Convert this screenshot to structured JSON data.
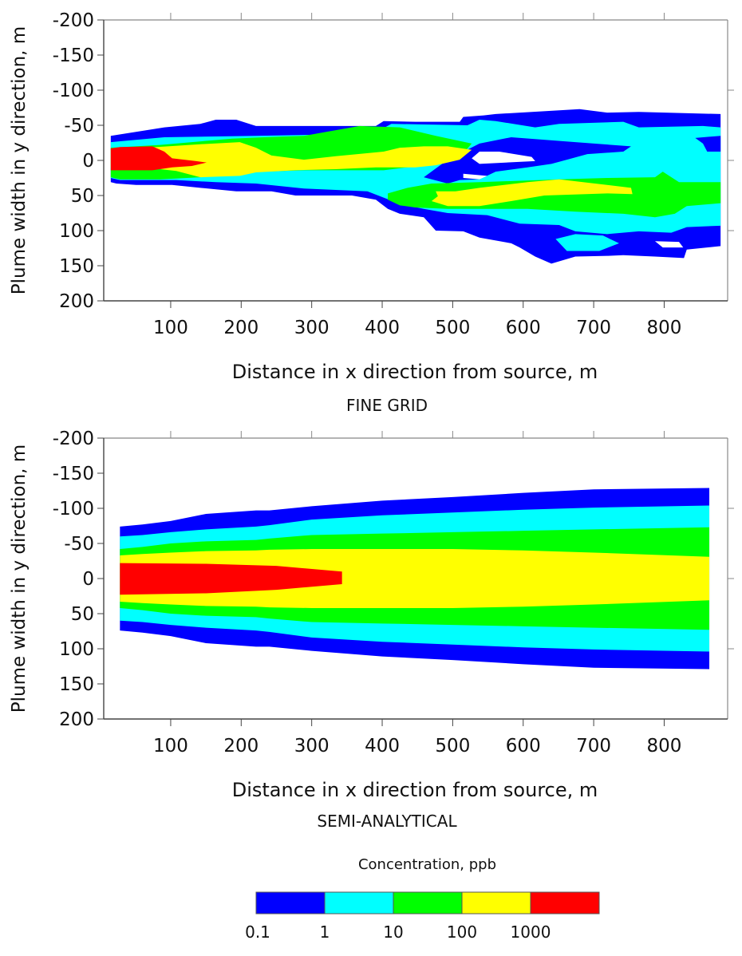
{
  "chart_data": [
    {
      "type": "contour",
      "subtitle": "FINE GRID",
      "xlabel": "Distance in x direction from source, m",
      "ylabel": "Plume width in y direction, m",
      "xlim": [
        5,
        890
      ],
      "ylim": [
        -200,
        200
      ],
      "y_inverted": true,
      "xticks": [
        100,
        200,
        300,
        400,
        500,
        600,
        700,
        800
      ],
      "yticks": [
        -200,
        -150,
        -100,
        -50,
        0,
        50,
        100,
        150,
        200
      ],
      "grid": false,
      "regions": [
        {
          "level": "0.1-1",
          "color": "#0000ff",
          "points": [
            [
              15,
              -35
            ],
            [
              91,
              -47
            ],
            [
              142,
              -52
            ],
            [
              164,
              -58
            ],
            [
              193,
              -58
            ],
            [
              221,
              -49
            ],
            [
              391,
              -49
            ],
            [
              402,
              -56
            ],
            [
              447,
              -55
            ],
            [
              510,
              -55
            ],
            [
              515,
              -62
            ],
            [
              544,
              -64
            ],
            [
              561,
              -66
            ],
            [
              680,
              -73
            ],
            [
              719,
              -68
            ],
            [
              764,
              -69
            ],
            [
              880,
              -66
            ],
            [
              880,
              122
            ],
            [
              861,
              124
            ],
            [
              832,
              127
            ],
            [
              828,
              139
            ],
            [
              787,
              137
            ],
            [
              742,
              135
            ],
            [
              719,
              136
            ],
            [
              674,
              137
            ],
            [
              640,
              147
            ],
            [
              617,
              137
            ],
            [
              595,
              124
            ],
            [
              583,
              118
            ],
            [
              538,
              110
            ],
            [
              515,
              101
            ],
            [
              476,
              100
            ],
            [
              459,
              81
            ],
            [
              425,
              76
            ],
            [
              408,
              69
            ],
            [
              391,
              56
            ],
            [
              357,
              50
            ],
            [
              277,
              50
            ],
            [
              243,
              44
            ],
            [
              193,
              44
            ],
            [
              142,
              39
            ],
            [
              102,
              35
            ],
            [
              51,
              35
            ],
            [
              23,
              33
            ],
            [
              15,
              31
            ]
          ]
        },
        {
          "level": "1-10",
          "color": "#00ffff",
          "points": [
            [
              15,
              -26
            ],
            [
              91,
              -33
            ],
            [
              221,
              -35
            ],
            [
              334,
              -37
            ],
            [
              391,
              -40
            ],
            [
              413,
              -52
            ],
            [
              521,
              -50
            ],
            [
              538,
              -58
            ],
            [
              561,
              -56
            ],
            [
              617,
              -47
            ],
            [
              651,
              -52
            ],
            [
              742,
              -55
            ],
            [
              764,
              -47
            ],
            [
              855,
              -49
            ],
            [
              880,
              -47
            ],
            [
              880,
              93
            ],
            [
              832,
              95
            ],
            [
              810,
              103
            ],
            [
              764,
              101
            ],
            [
              719,
              105
            ],
            [
              674,
              101
            ],
            [
              651,
              92
            ],
            [
              595,
              90
            ],
            [
              549,
              78
            ],
            [
              493,
              75
            ],
            [
              459,
              69
            ],
            [
              425,
              62
            ],
            [
              402,
              53
            ],
            [
              379,
              44
            ],
            [
              289,
              40
            ],
            [
              221,
              33
            ],
            [
              164,
              31
            ],
            [
              108,
              28
            ],
            [
              28,
              28
            ],
            [
              15,
              25
            ]
          ]
        },
        {
          "level": "0.1-1",
          "color": "#0000ff",
          "points": [
            [
              459,
              24
            ],
            [
              493,
              -1
            ],
            [
              538,
              -24
            ],
            [
              583,
              -33
            ],
            [
              674,
              -26
            ],
            [
              753,
              -20
            ],
            [
              742,
              -12.5
            ],
            [
              691,
              -9
            ],
            [
              662,
              -1
            ],
            [
              640,
              5
            ],
            [
              606,
              10
            ],
            [
              561,
              16
            ],
            [
              538,
              27
            ],
            [
              510,
              28
            ],
            [
              493,
              33
            ]
          ]
        },
        {
          "level": "0.1-1",
          "color": "#0000ff",
          "points": [
            [
              306,
              -22
            ],
            [
              357,
              -24
            ],
            [
              334,
              -12.5
            ],
            [
              306,
              -12.5
            ]
          ]
        },
        {
          "level": "0.1-1",
          "color": "#0000ff",
          "points": [
            [
              844,
              -32
            ],
            [
              880,
              -35
            ],
            [
              880,
              -12.5
            ],
            [
              861,
              -12.5
            ],
            [
              855,
              -24
            ]
          ]
        },
        {
          "level": "1-10",
          "color": "#00ffff",
          "points": [
            [
              646,
              112
            ],
            [
              674,
              105
            ],
            [
              713,
              107
            ],
            [
              736,
              118
            ],
            [
              708,
              129
            ],
            [
              662,
              129
            ]
          ]
        },
        {
          "level": "10-100",
          "color": "#00ff00",
          "points": [
            [
              15,
              -18
            ],
            [
              85,
              -22
            ],
            [
              130,
              -26
            ],
            [
              187,
              -31
            ],
            [
              232,
              -33
            ],
            [
              289,
              -35
            ],
            [
              323,
              -41
            ],
            [
              368,
              -49
            ],
            [
              425,
              -47
            ],
            [
              476,
              -35
            ],
            [
              527,
              -24
            ],
            [
              515,
              -10
            ],
            [
              476,
              5
            ],
            [
              402,
              14
            ],
            [
              334,
              14
            ],
            [
              289,
              14
            ],
            [
              232,
              16
            ],
            [
              187,
              19
            ],
            [
              142,
              24
            ],
            [
              85,
              27
            ],
            [
              28,
              27
            ],
            [
              15,
              24
            ]
          ]
        },
        {
          "level": "10-100",
          "color": "#00ff00",
          "points": [
            [
              408,
              47
            ],
            [
              436,
              39
            ],
            [
              470,
              33
            ],
            [
              538,
              31
            ],
            [
              651,
              27
            ],
            [
              719,
              25
            ],
            [
              787,
              24
            ],
            [
              798,
              16
            ],
            [
              821,
              31
            ],
            [
              880,
              31
            ],
            [
              880,
              61
            ],
            [
              832,
              65
            ],
            [
              815,
              76
            ],
            [
              787,
              81
            ],
            [
              742,
              76
            ],
            [
              674,
              73
            ],
            [
              606,
              69
            ],
            [
              561,
              69
            ],
            [
              493,
              69
            ],
            [
              447,
              67
            ],
            [
              425,
              64
            ],
            [
              408,
              56
            ]
          ]
        },
        {
          "level": "100-1000",
          "color": "#ffff00",
          "points": [
            [
              15,
              -15
            ],
            [
              96,
              -20
            ],
            [
              142,
              -23
            ],
            [
              198,
              -26
            ],
            [
              221,
              -18
            ],
            [
              243,
              -7
            ],
            [
              289,
              -1
            ],
            [
              334,
              -6
            ],
            [
              402,
              -12.5
            ],
            [
              425,
              -18
            ],
            [
              459,
              -20
            ],
            [
              493,
              -20
            ],
            [
              527,
              -15
            ],
            [
              510,
              -1
            ],
            [
              476,
              7
            ],
            [
              447,
              10
            ],
            [
              391,
              10
            ],
            [
              334,
              12.5
            ],
            [
              277,
              14
            ],
            [
              221,
              17
            ],
            [
              198,
              22
            ],
            [
              142,
              24
            ],
            [
              108,
              15
            ],
            [
              85,
              12.5
            ],
            [
              28,
              12.5
            ],
            [
              15,
              10
            ]
          ]
        },
        {
          "level": "100-1000",
          "color": "#ffff00",
          "points": [
            [
              476,
              44
            ],
            [
              504,
              44
            ],
            [
              538,
              39
            ],
            [
              606,
              31
            ],
            [
              651,
              27
            ],
            [
              753,
              39
            ],
            [
              755,
              48
            ],
            [
              719,
              47
            ],
            [
              630,
              50
            ],
            [
              583,
              58
            ],
            [
              538,
              65
            ],
            [
              493,
              65
            ],
            [
              470,
              58
            ],
            [
              479,
              51
            ]
          ]
        },
        {
          "level": ">1000",
          "color": "#ff0000",
          "points": [
            [
              15,
              -17
            ],
            [
              28,
              -19
            ],
            [
              74,
              -20
            ],
            [
              91,
              -12.5
            ],
            [
              102,
              -3
            ],
            [
              136,
              1
            ],
            [
              151,
              3
            ],
            [
              130,
              8
            ],
            [
              102,
              10
            ],
            [
              74,
              14
            ],
            [
              28,
              14
            ],
            [
              15,
              14
            ]
          ]
        },
        {
          "level": "<0.1",
          "color": "#ffffff",
          "points": [
            [
              538,
              -12.5
            ],
            [
              566,
              -12.5
            ],
            [
              612,
              -5
            ],
            [
              617,
              1
            ],
            [
              538,
              5
            ],
            [
              527,
              -3
            ]
          ]
        },
        {
          "level": "<0.1",
          "color": "#ffffff",
          "points": [
            [
              515,
              19
            ],
            [
              549,
              22
            ],
            [
              538,
              27
            ],
            [
              515,
              25
            ]
          ]
        },
        {
          "level": "<0.1",
          "color": "#ffffff",
          "points": [
            [
              787,
              115
            ],
            [
              821,
              116
            ],
            [
              827,
              124
            ],
            [
              798,
              124
            ]
          ]
        }
      ]
    },
    {
      "type": "contour",
      "subtitle": "SEMI-ANALYTICAL",
      "xlabel": "Distance in x direction from source, m",
      "ylabel": "Plume width in y direction, m",
      "xlim": [
        5,
        890
      ],
      "ylim": [
        -200,
        200
      ],
      "y_inverted": true,
      "xticks": [
        100,
        200,
        300,
        400,
        500,
        600,
        700,
        800
      ],
      "yticks": [
        -200,
        -150,
        -100,
        -50,
        0,
        50,
        100,
        150,
        200
      ],
      "grid": false,
      "symmetric_bands": {
        "x": [
          28,
          60,
          100,
          150,
          221,
          240,
          300,
          400,
          500,
          600,
          700,
          864
        ],
        "bands": [
          {
            "level": "0.1-1",
            "color": "#0000ff",
            "half_width": [
              74,
              77,
              82,
              92,
              97,
              97,
              103,
              111,
              116,
              122,
              127,
              129
            ]
          },
          {
            "level": "1-10",
            "color": "#00ffff",
            "half_width": [
              60,
              62,
              66,
              70,
              74,
              76,
              84,
              90,
              94,
              98,
              101,
              104
            ]
          },
          {
            "level": "10-100",
            "color": "#00ff00",
            "half_width": [
              42,
              45,
              50,
              53,
              55,
              57,
              62,
              64,
              66,
              68,
              70,
              73
            ]
          },
          {
            "level": "100-1000",
            "color": "#ffff00",
            "half_width": [
              33,
              35,
              37,
              39,
              40,
              41,
              42,
              42,
              42,
              40,
              37,
              31
            ]
          }
        ]
      },
      "regions": [
        {
          "level": ">1000",
          "color": "#ff0000",
          "points": [
            [
              28,
              -22
            ],
            [
              150,
              -21
            ],
            [
              250,
              -18
            ],
            [
              343,
              -10
            ],
            [
              343,
              8
            ],
            [
              250,
              16
            ],
            [
              150,
              21
            ],
            [
              28,
              23
            ]
          ]
        }
      ]
    }
  ],
  "colorbar": {
    "title": "Concentration, ppb",
    "labels": [
      "0.1",
      "1",
      "10",
      "100",
      "1000"
    ],
    "colors": [
      "#0000ff",
      "#00ffff",
      "#00ff00",
      "#ffff00",
      "#ff0000"
    ]
  }
}
